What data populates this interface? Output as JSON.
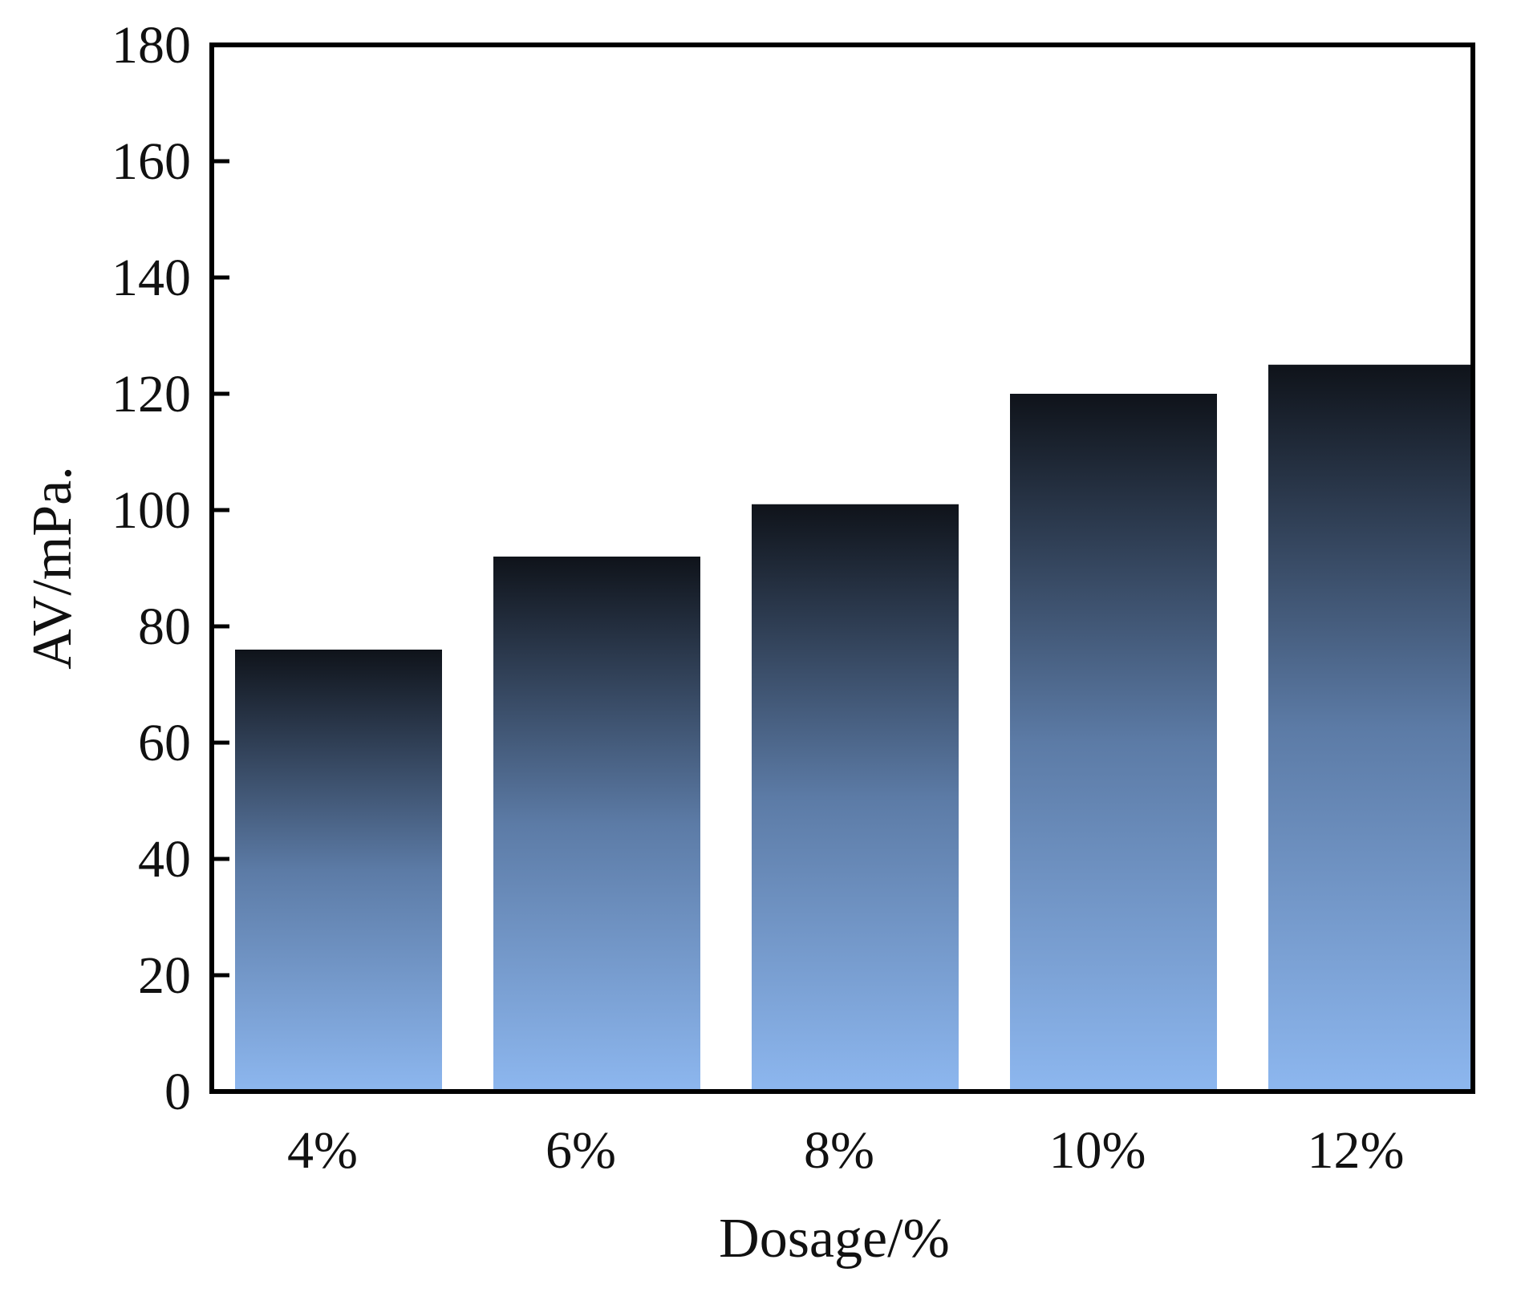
{
  "chart_data": {
    "type": "bar",
    "title": "",
    "xlabel": "Dosage/%",
    "ylabel": "AV/mPa.",
    "categories": [
      "4%",
      "6%",
      "8%",
      "10%",
      "12%"
    ],
    "values": [
      76,
      92,
      101,
      120,
      125
    ],
    "ylim": [
      0,
      180
    ],
    "yticks": [
      0,
      20,
      40,
      60,
      80,
      100,
      120,
      140,
      160,
      180
    ],
    "grid": false,
    "legend": "none",
    "bar_gradient": {
      "top": "#0f131a",
      "middle": "#5c7ba6",
      "bottom": "#8db7ef"
    }
  }
}
